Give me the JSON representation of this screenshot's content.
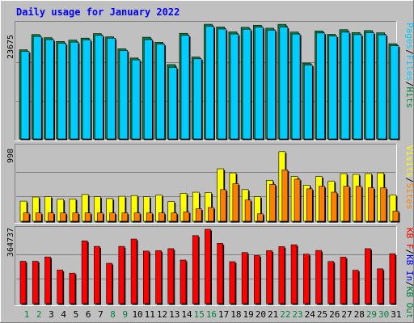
{
  "title": "Daily usage for January 2022",
  "colors": {
    "background": "#C0C0C0",
    "title": "#0000FF",
    "hits": "#00CCFF",
    "files": "#008040",
    "pages": "#00CCFF",
    "visits": "#FFFF00",
    "sites": "#FF8000",
    "kbytes": "#FF0000",
    "weekend_day": "#008040",
    "weekday": "#000000"
  },
  "chart_data": [
    {
      "type": "bar",
      "panel": "top",
      "ymax_label": "23675",
      "ylim": [
        0,
        23675
      ],
      "legend": [
        {
          "text": "Pages",
          "color": "#00CCFF"
        },
        {
          "text": "/",
          "color": "#000000"
        },
        {
          "text": "Files",
          "color": "#00CCFF"
        },
        {
          "text": "/",
          "color": "#000000"
        },
        {
          "text": "Hits",
          "color": "#008040"
        }
      ],
      "categories": [
        "1",
        "2",
        "3",
        "4",
        "5",
        "6",
        "7",
        "8",
        "9",
        "10",
        "11",
        "12",
        "13",
        "14",
        "15",
        "16",
        "17",
        "18",
        "19",
        "20",
        "21",
        "22",
        "23",
        "24",
        "25",
        "26",
        "27",
        "28",
        "29",
        "30",
        "31"
      ],
      "series": [
        {
          "name": "Hits",
          "values": [
            18400,
            21550,
            20900,
            20120,
            20400,
            20810,
            21740,
            21080,
            18600,
            16700,
            20990,
            19950,
            15350,
            21800,
            16900,
            23660,
            23100,
            22100,
            23040,
            23450,
            22850,
            23650,
            22060,
            15660,
            22290,
            21590,
            22550,
            21950,
            22370,
            21910,
            19650
          ]
        },
        {
          "name": "Files",
          "values": [
            18050,
            21150,
            20500,
            19720,
            19980,
            20440,
            21380,
            20800,
            18250,
            16320,
            20500,
            19550,
            14760,
            21370,
            16540,
            23260,
            22680,
            21650,
            22630,
            23070,
            22460,
            23100,
            21650,
            15240,
            21860,
            21240,
            22030,
            21530,
            21930,
            21500,
            19230
          ]
        }
      ]
    },
    {
      "type": "bar",
      "panel": "middle",
      "ymax_label": "998",
      "ylim": [
        0,
        998
      ],
      "legend": [
        {
          "text": "Visits",
          "color": "#FFFF00"
        },
        {
          "text": "/",
          "color": "#000000"
        },
        {
          "text": "Sites",
          "color": "#FF8000"
        }
      ],
      "categories": [
        "1",
        "2",
        "3",
        "4",
        "5",
        "6",
        "7",
        "8",
        "9",
        "10",
        "11",
        "12",
        "13",
        "14",
        "15",
        "16",
        "17",
        "18",
        "19",
        "20",
        "21",
        "22",
        "23",
        "24",
        "25",
        "26",
        "27",
        "28",
        "29",
        "30",
        "31"
      ],
      "series": [
        {
          "name": "Visits",
          "values": [
            270,
            325,
            330,
            295,
            300,
            360,
            330,
            305,
            335,
            345,
            330,
            350,
            265,
            375,
            390,
            385,
            705,
            650,
            425,
            330,
            550,
            935,
            600,
            485,
            600,
            540,
            640,
            630,
            640,
            650,
            355
          ]
        },
        {
          "name": "Sites",
          "values": [
            112,
            112,
            112,
            112,
            112,
            112,
            112,
            112,
            112,
            112,
            112,
            112,
            112,
            124,
            168,
            185,
            425,
            505,
            285,
            100,
            495,
            690,
            565,
            435,
            470,
            390,
            470,
            470,
            450,
            450,
            136
          ]
        }
      ]
    },
    {
      "type": "bar",
      "panel": "bottom",
      "ymax_label": "364737",
      "ylim": [
        0,
        364737
      ],
      "legend": [
        {
          "text": "KB F",
          "color": "#FF0000"
        },
        {
          "text": "/",
          "color": "#000000"
        },
        {
          "text": "KB In",
          "color": "#0000FF"
        },
        {
          "text": "/",
          "color": "#000000"
        },
        {
          "text": "KB Out",
          "color": "#008040"
        }
      ],
      "categories": [
        "1",
        "2",
        "3",
        "4",
        "5",
        "6",
        "7",
        "8",
        "9",
        "10",
        "11",
        "12",
        "13",
        "14",
        "15",
        "16",
        "17",
        "18",
        "19",
        "20",
        "21",
        "22",
        "23",
        "24",
        "25",
        "26",
        "27",
        "28",
        "29",
        "30",
        "31"
      ],
      "series": [
        {
          "name": "KB F",
          "values": [
            208000,
            208000,
            229000,
            165000,
            150000,
            308000,
            281000,
            198000,
            281000,
            317000,
            258000,
            260000,
            270000,
            214000,
            334000,
            365000,
            296000,
            206000,
            251000,
            236000,
            260000,
            280000,
            289000,
            243000,
            261000,
            207000,
            228000,
            164000,
            270000,
            171000,
            245000
          ]
        }
      ]
    }
  ],
  "x_axis": {
    "days": [
      "1",
      "2",
      "3",
      "4",
      "5",
      "6",
      "7",
      "8",
      "9",
      "10",
      "11",
      "12",
      "13",
      "14",
      "15",
      "16",
      "17",
      "18",
      "19",
      "20",
      "21",
      "22",
      "23",
      "24",
      "25",
      "26",
      "27",
      "28",
      "29",
      "30",
      "31"
    ],
    "weekend": [
      1,
      2,
      8,
      9,
      15,
      16,
      22,
      23,
      29,
      30
    ]
  }
}
